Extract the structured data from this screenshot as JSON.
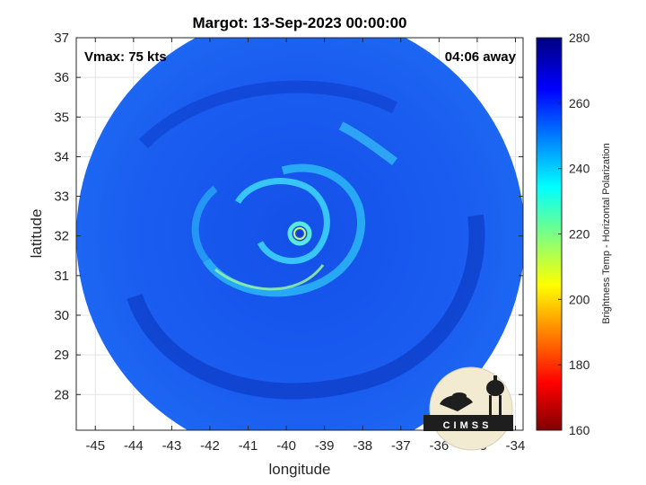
{
  "chart_data": {
    "type": "heatmap",
    "title": "Margot: 13-Sep-2023 00:00:00",
    "xlabel": "longitude",
    "ylabel": "latitude",
    "xlim": [
      -45.5,
      -33.8
    ],
    "ylim": [
      27.1,
      37.0
    ],
    "x_ticks": [
      -45,
      -44,
      -43,
      -42,
      -41,
      -40,
      -39,
      -38,
      -37,
      -36,
      -35,
      -34
    ],
    "y_ticks": [
      28,
      29,
      30,
      31,
      32,
      33,
      34,
      35,
      36,
      37
    ],
    "grid": true,
    "annotations": {
      "vmax": "Vmax: 75 kts",
      "time_away": "04:06 away"
    },
    "storm_center": {
      "lon": -39.6,
      "lat": 32.0
    },
    "swath_radius_deg": 5.6,
    "colorbar": {
      "label": "Brightness Temp - Horizontal Polarization",
      "range": [
        160,
        280
      ],
      "ticks": [
        160,
        180,
        200,
        220,
        240,
        260,
        280
      ],
      "colormap": "jet"
    },
    "logo_text": "CIMSS"
  }
}
